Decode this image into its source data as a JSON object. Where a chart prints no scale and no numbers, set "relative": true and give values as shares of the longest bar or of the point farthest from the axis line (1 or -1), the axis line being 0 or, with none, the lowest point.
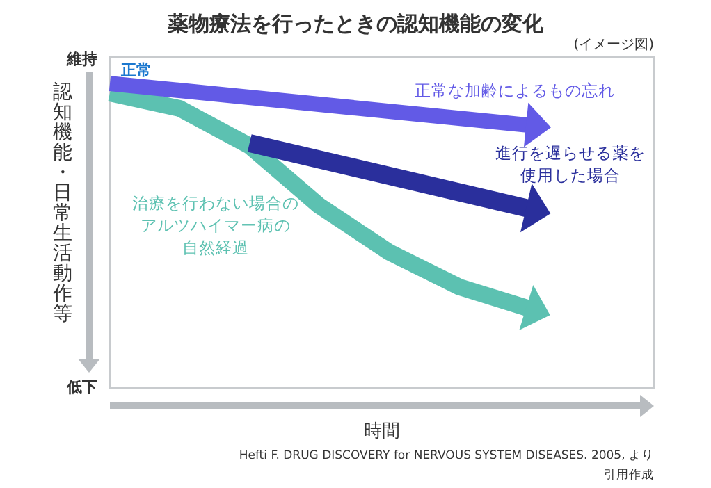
{
  "chart_data": {
    "type": "line",
    "title": "薬物療法を行ったときの認知機能の変化",
    "xlabel": "時間",
    "ylabel": "認知機能・日常生活動作等",
    "categories": [
      null,
      null,
      null,
      null,
      null,
      null,
      null
    ],
    "relative": true,
    "legend": false,
    "series": [
      {
        "name": "正常な加齢によるもの忘れ",
        "color": "#625ae6",
        "values": [
          1,
          null,
          null,
          null,
          null,
          null,
          0.863
        ]
      },
      {
        "name": "進行を遅らせる薬を使用した場合",
        "color": "#2a2f9c",
        "values": [
          null,
          null,
          0.804,
          null,
          null,
          null,
          0.589
        ]
      },
      {
        "name": "治療を行わない場合のアルツハイマー病の自然経過",
        "color": "#5cc1b1",
        "values": [
          0.968,
          0.918,
          0.795,
          0.598,
          0.446,
          0.332,
          0.261
        ]
      }
    ],
    "annotations": [
      "維持",
      "低下",
      "正常",
      "(イメージ図)",
      "Hefti F. DRUG DISCOVERY for NERVOUS SYSTEM DISEASES. 2005, より引用作成"
    ]
  }
}
